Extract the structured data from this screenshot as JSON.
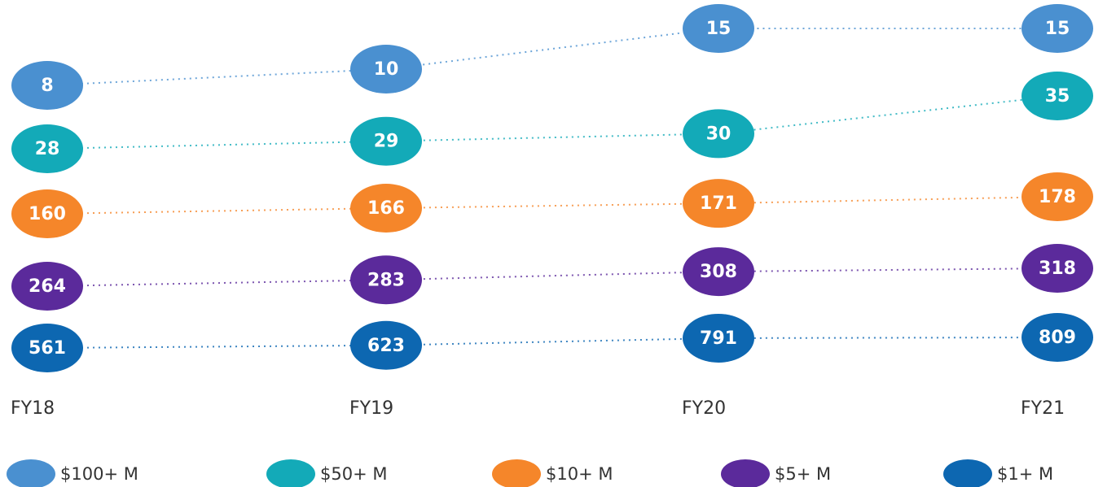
{
  "chart_data": {
    "type": "line",
    "categories": [
      "FY18",
      "FY19",
      "FY20",
      "FY21"
    ],
    "series": [
      {
        "name": "$100+ M",
        "color": "#4a90d0",
        "values": [
          8,
          10,
          15,
          15
        ]
      },
      {
        "name": "$50+ M",
        "color": "#13aab8",
        "values": [
          28,
          29,
          30,
          35
        ]
      },
      {
        "name": "$10+ M",
        "color": "#f5862a",
        "values": [
          160,
          166,
          171,
          178
        ]
      },
      {
        "name": "$5+ M",
        "color": "#5b2a9b",
        "values": [
          264,
          283,
          308,
          318
        ]
      },
      {
        "name": "$1+ M",
        "color": "#0d67b1",
        "values": [
          561,
          623,
          791,
          809
        ]
      }
    ],
    "legend": "bottom"
  }
}
